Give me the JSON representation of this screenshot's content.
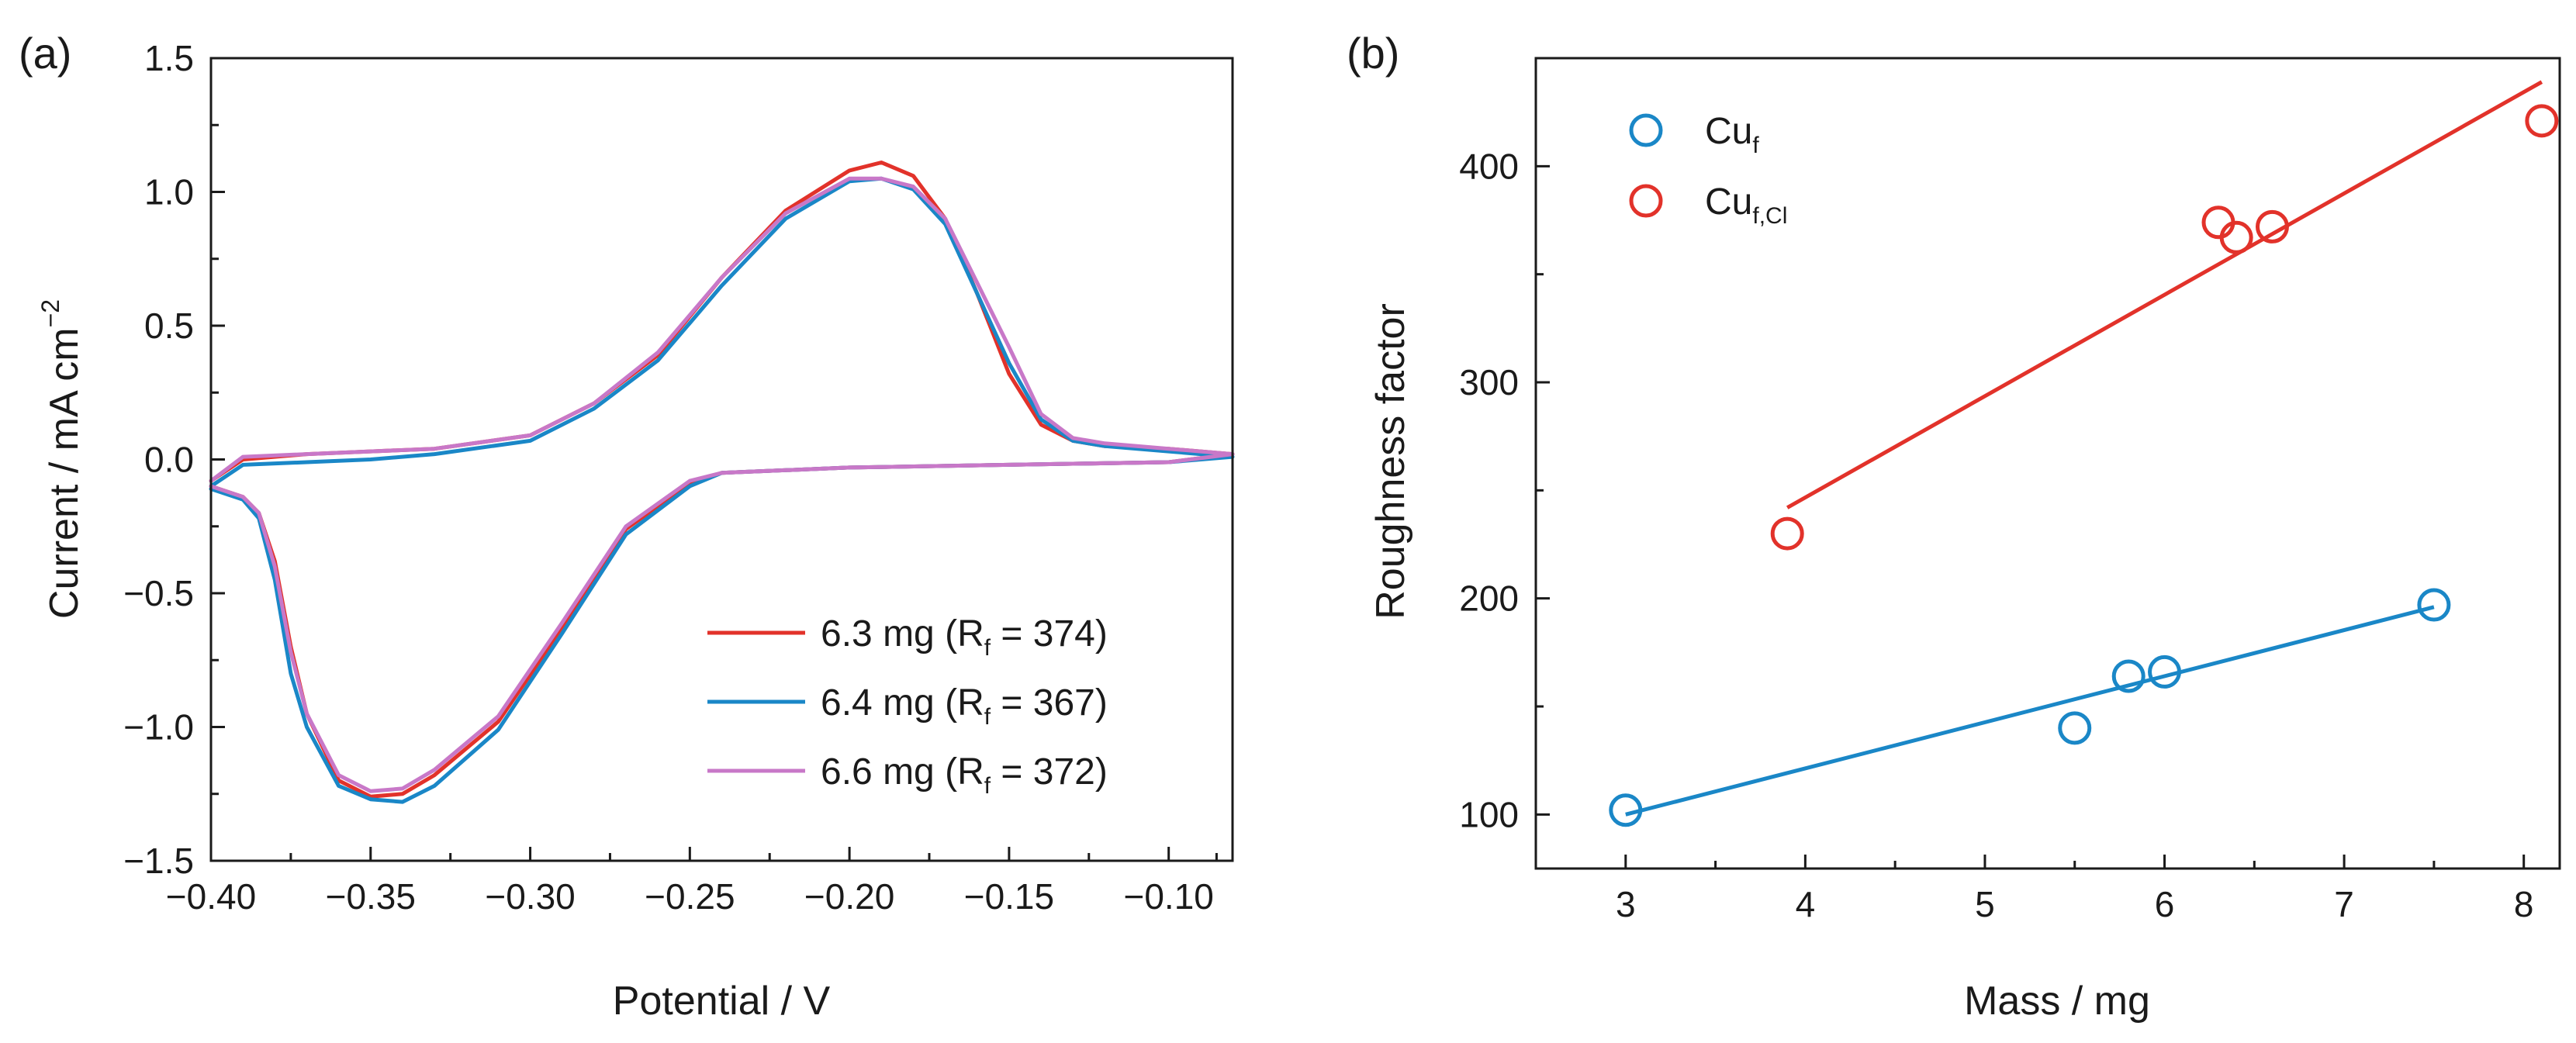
{
  "colors": {
    "red": "#e2322a",
    "blue": "#1a87c7",
    "violet": "#c878c8",
    "axis": "#1a1a1a"
  },
  "chart_data": [
    {
      "panel_label": "(a)",
      "type": "line",
      "title": "",
      "xlabel": "Potential / V",
      "ylabel": "Current / mA cm",
      "ylabel_superscript": "−2",
      "xlim": [
        -0.4,
        -0.08
      ],
      "ylim": [
        -1.5,
        1.5
      ],
      "xticks": [
        -0.4,
        -0.35,
        -0.3,
        -0.25,
        -0.2,
        -0.15,
        -0.1
      ],
      "xtick_labels": [
        "−0.40",
        "−0.35",
        "−0.30",
        "−0.25",
        "−0.20",
        "−0.15",
        "−0.10"
      ],
      "yticks": [
        -1.5,
        -1.0,
        -0.5,
        0.0,
        0.5,
        1.0,
        1.5
      ],
      "ytick_labels": [
        "−1.5",
        "−1.0",
        "−0.5",
        "0.0",
        "0.5",
        "1.0",
        "1.5"
      ],
      "legend_position": "bottom-right",
      "series": [
        {
          "name": "6.3 mg (Rf = 374)",
          "legend_prefix": "6.3 mg (R",
          "legend_sub": "f",
          "legend_suffix": " = 374)",
          "color_key": "red",
          "x": [
            -0.4,
            -0.39,
            -0.37,
            -0.35,
            -0.33,
            -0.3,
            -0.28,
            -0.26,
            -0.24,
            -0.22,
            -0.2,
            -0.19,
            -0.18,
            -0.17,
            -0.16,
            -0.15,
            -0.14,
            -0.13,
            -0.12,
            -0.1,
            -0.08,
            -0.1,
            -0.15,
            -0.2,
            -0.24,
            -0.25,
            -0.27,
            -0.29,
            -0.31,
            -0.33,
            -0.34,
            -0.35,
            -0.36,
            -0.37,
            -0.375,
            -0.38,
            -0.385,
            -0.39,
            -0.4
          ],
          "y": [
            -0.08,
            0.0,
            0.02,
            0.03,
            0.04,
            0.09,
            0.21,
            0.39,
            0.68,
            0.93,
            1.08,
            1.11,
            1.06,
            0.9,
            0.62,
            0.32,
            0.13,
            0.07,
            0.05,
            0.04,
            0.02,
            -0.01,
            -0.02,
            -0.03,
            -0.05,
            -0.09,
            -0.26,
            -0.63,
            -0.98,
            -1.18,
            -1.25,
            -1.26,
            -1.2,
            -0.95,
            -0.7,
            -0.38,
            -0.2,
            -0.14,
            -0.1
          ]
        },
        {
          "name": "6.4 mg (Rf = 367)",
          "legend_prefix": "6.4 mg (R",
          "legend_sub": "f",
          "legend_suffix": " = 367)",
          "color_key": "blue",
          "x": [
            -0.4,
            -0.39,
            -0.37,
            -0.35,
            -0.33,
            -0.3,
            -0.28,
            -0.26,
            -0.24,
            -0.22,
            -0.2,
            -0.19,
            -0.18,
            -0.17,
            -0.16,
            -0.15,
            -0.14,
            -0.13,
            -0.12,
            -0.1,
            -0.08,
            -0.1,
            -0.15,
            -0.2,
            -0.24,
            -0.25,
            -0.27,
            -0.29,
            -0.31,
            -0.33,
            -0.34,
            -0.35,
            -0.36,
            -0.37,
            -0.375,
            -0.38,
            -0.385,
            -0.39,
            -0.4
          ],
          "y": [
            -0.1,
            -0.02,
            -0.01,
            0.0,
            0.02,
            0.07,
            0.19,
            0.37,
            0.65,
            0.9,
            1.04,
            1.05,
            1.01,
            0.88,
            0.62,
            0.36,
            0.15,
            0.07,
            0.05,
            0.03,
            0.01,
            -0.01,
            -0.02,
            -0.03,
            -0.05,
            -0.1,
            -0.28,
            -0.65,
            -1.01,
            -1.22,
            -1.28,
            -1.27,
            -1.22,
            -1.0,
            -0.8,
            -0.45,
            -0.22,
            -0.15,
            -0.11
          ]
        },
        {
          "name": "6.6 mg (Rf = 372)",
          "legend_prefix": "6.6 mg (R",
          "legend_sub": "f",
          "legend_suffix": " = 372)",
          "color_key": "violet",
          "x": [
            -0.4,
            -0.39,
            -0.37,
            -0.35,
            -0.33,
            -0.3,
            -0.28,
            -0.26,
            -0.24,
            -0.22,
            -0.2,
            -0.19,
            -0.18,
            -0.17,
            -0.16,
            -0.15,
            -0.14,
            -0.13,
            -0.12,
            -0.1,
            -0.08,
            -0.1,
            -0.15,
            -0.2,
            -0.24,
            -0.25,
            -0.27,
            -0.29,
            -0.31,
            -0.33,
            -0.34,
            -0.35,
            -0.36,
            -0.37,
            -0.375,
            -0.38,
            -0.385,
            -0.39,
            -0.4
          ],
          "y": [
            -0.08,
            0.01,
            0.02,
            0.03,
            0.04,
            0.09,
            0.21,
            0.4,
            0.68,
            0.92,
            1.05,
            1.05,
            1.02,
            0.9,
            0.66,
            0.42,
            0.17,
            0.08,
            0.06,
            0.04,
            0.02,
            -0.01,
            -0.02,
            -0.03,
            -0.05,
            -0.08,
            -0.25,
            -0.61,
            -0.96,
            -1.16,
            -1.23,
            -1.24,
            -1.18,
            -0.95,
            -0.72,
            -0.4,
            -0.2,
            -0.14,
            -0.1
          ]
        }
      ]
    },
    {
      "panel_label": "(b)",
      "type": "scatter",
      "title": "",
      "xlabel": "Mass / mg",
      "ylabel": "Roughness factor",
      "xlim": [
        2.5,
        8.2
      ],
      "ylim": [
        75,
        450
      ],
      "xticks": [
        3,
        4,
        5,
        6,
        7,
        8
      ],
      "xtick_labels": [
        "3",
        "4",
        "5",
        "6",
        "7",
        "8"
      ],
      "yticks": [
        100,
        200,
        300,
        400
      ],
      "ytick_labels": [
        "100",
        "200",
        "300",
        "400"
      ],
      "legend_position": "top-left",
      "series": [
        {
          "name": "Cuf",
          "legend_base": "Cu",
          "legend_sub": "f",
          "color_key": "blue",
          "x": [
            3.0,
            5.5,
            5.8,
            6.0,
            7.5
          ],
          "y": [
            102,
            140,
            164,
            166,
            197
          ],
          "fit_x": [
            3.0,
            7.5
          ],
          "fit_y": [
            100,
            196
          ]
        },
        {
          "name": "Cuf,Cl",
          "legend_base": "Cu",
          "legend_sub": "f,Cl",
          "color_key": "red",
          "x": [
            3.9,
            6.3,
            6.4,
            6.6,
            8.1
          ],
          "y": [
            230,
            374,
            367,
            372,
            421
          ],
          "fit_x": [
            3.9,
            8.1
          ],
          "fit_y": [
            242,
            439
          ]
        }
      ]
    }
  ]
}
